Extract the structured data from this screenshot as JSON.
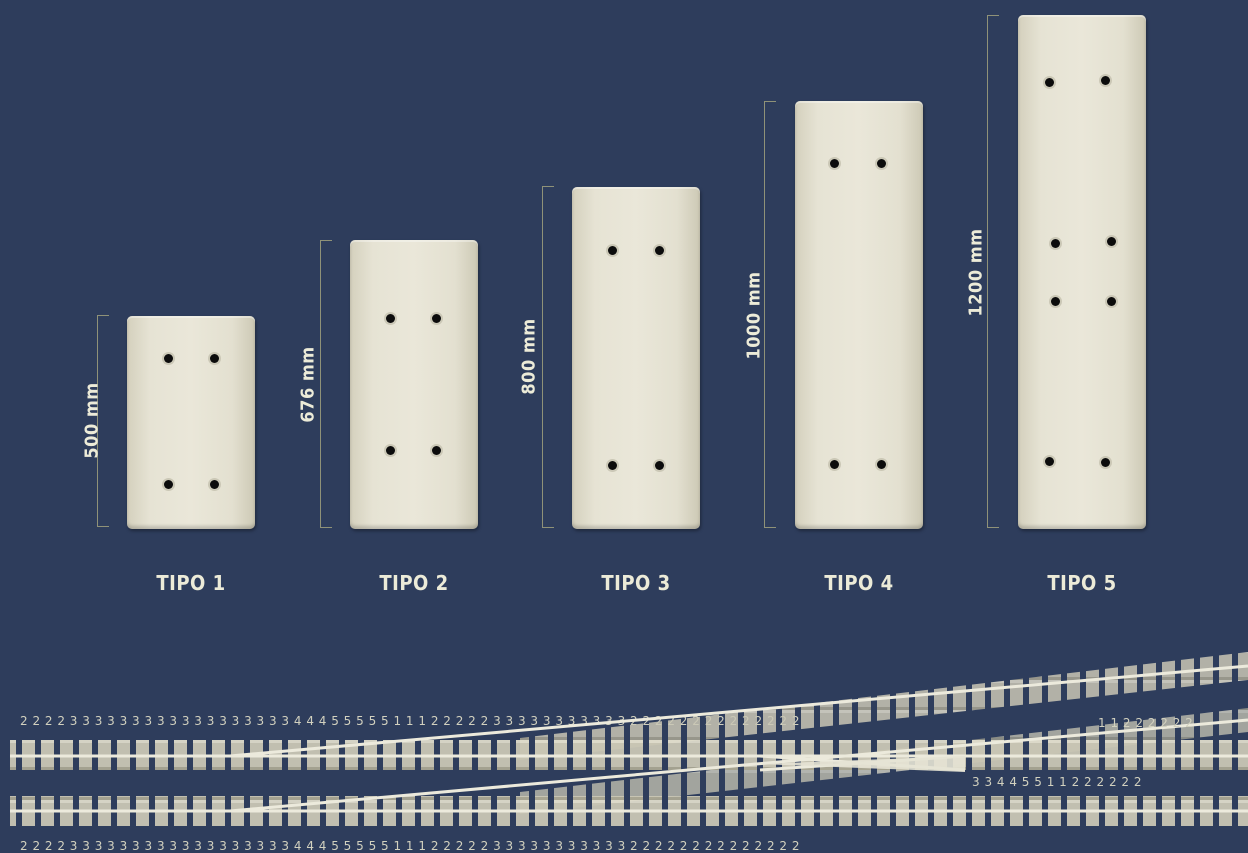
{
  "panels": [
    {
      "tipo": "TIPO 1",
      "dim": "500 mm",
      "colors": {
        "slab": "#e6e3d4"
      }
    },
    {
      "tipo": "TIPO 2",
      "dim": "676 mm"
    },
    {
      "tipo": "TIPO 3",
      "dim": "800 mm"
    },
    {
      "tipo": "TIPO 4",
      "dim": "1000 mm"
    },
    {
      "tipo": "TIPO 5",
      "dim": "1200 mm"
    }
  ],
  "track": {
    "top_numbers": "2 2 2 2 3 3 3 3 3 3 3 3 3 3 3 3 3 3 3 3 3 3 4 4 4 5 5 5 5 5 1 1 1 2 2 2 2 2 3 3 3 3 3 3 3 3 3 3 3 2 2 2 2 2 2 2 2 2 2 2 2 2 2",
    "bottom_numbers": "2 2 2 2 3 3 3 3 3 3 3 3 3 3 3 3 3 3 3 3 3 3 4 4 4 5 5 5 5 5 1 1 1 2 2 2 2 2 3 3 3 3 3 3 3 3 3 3 3 2 2 2 2 2 2 2 2 2 2 2 2 2 2",
    "branch_numbers_upper": "1 1 2 2 2 2 2 2",
    "branch_numbers_lower": "3 3 4 4 5 5 1 1 2 2 2 2 2 2",
    "colors": {
      "sleeper": "#c9c6b4",
      "rail": "#eceadc",
      "background": "#2e3d5c"
    }
  }
}
